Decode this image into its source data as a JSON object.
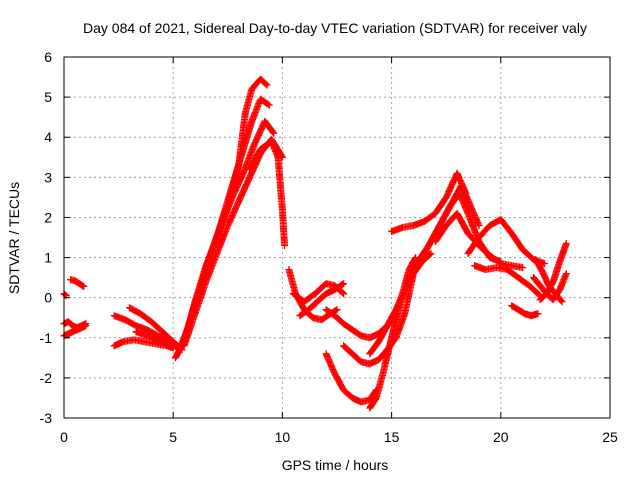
{
  "chart_data": {
    "type": "scatter",
    "title": "Day 084 of 2021, Sidereal Day-to-day VTEC variation (SDTVAR) for receiver valy",
    "xlabel": "GPS time / hours",
    "ylabel": "SDTVAR / TECUs",
    "xlim": [
      0,
      25
    ],
    "ylim": [
      -3,
      6
    ],
    "xticks": [
      0,
      5,
      10,
      15,
      20,
      25
    ],
    "yticks": [
      -3,
      -2,
      -1,
      0,
      1,
      2,
      3,
      4,
      5,
      6
    ],
    "grid": true,
    "marker": "+",
    "color": "#ff0000",
    "series": [
      {
        "name": "arc-1",
        "x": [
          0.0,
          0.1
        ],
        "y": [
          0.1,
          0.05
        ]
      },
      {
        "name": "arc-2",
        "x": [
          0.0,
          0.2,
          0.4,
          0.6,
          0.8,
          1.0
        ],
        "y": [
          -0.65,
          -0.6,
          -0.7,
          -0.75,
          -0.7,
          -0.65
        ]
      },
      {
        "name": "arc-3",
        "x": [
          0.0,
          0.2,
          0.4,
          0.6,
          0.8,
          1.0
        ],
        "y": [
          -0.95,
          -0.9,
          -0.85,
          -0.8,
          -0.75,
          -0.7
        ]
      },
      {
        "name": "arc-4",
        "x": [
          0.3,
          0.5,
          0.7,
          0.9
        ],
        "y": [
          0.45,
          0.42,
          0.35,
          0.28
        ]
      },
      {
        "name": "arc-5",
        "x": [
          2.3,
          2.7,
          3.2,
          3.7,
          4.2,
          4.7,
          5.0
        ],
        "y": [
          -1.2,
          -1.1,
          -1.05,
          -1.1,
          -1.15,
          -1.2,
          -1.25
        ]
      },
      {
        "name": "arc-6",
        "x": [
          2.3,
          2.8,
          3.3,
          3.8,
          4.3,
          4.8,
          5.2
        ],
        "y": [
          -0.45,
          -0.55,
          -0.7,
          -0.8,
          -0.95,
          -1.1,
          -1.25
        ]
      },
      {
        "name": "arc-7",
        "x": [
          3.0,
          3.5,
          4.0,
          4.5,
          5.0,
          5.4
        ],
        "y": [
          -0.25,
          -0.4,
          -0.6,
          -0.85,
          -1.1,
          -1.3
        ]
      },
      {
        "name": "arc-8",
        "x": [
          3.3,
          3.8,
          4.3,
          4.8,
          5.3
        ],
        "y": [
          -0.85,
          -0.95,
          -1.05,
          -1.15,
          -1.25
        ]
      },
      {
        "name": "arc-9",
        "x": [
          5.1,
          5.5,
          6.0,
          6.5,
          7.0,
          7.5,
          8.0,
          8.3,
          8.6,
          9.0,
          9.3
        ],
        "y": [
          -1.5,
          -1.1,
          -0.1,
          0.8,
          1.5,
          2.3,
          3.3,
          4.6,
          5.2,
          5.45,
          5.3
        ]
      },
      {
        "name": "arc-10",
        "x": [
          5.2,
          5.6,
          6.1,
          6.6,
          7.1,
          7.6,
          8.1,
          8.6,
          9.0,
          9.4
        ],
        "y": [
          -1.4,
          -0.9,
          0.0,
          0.9,
          1.7,
          2.6,
          3.5,
          4.4,
          4.95,
          4.8
        ]
      },
      {
        "name": "arc-11",
        "x": [
          5.3,
          5.7,
          6.2,
          6.7,
          7.2,
          7.7,
          8.2,
          8.7,
          9.2,
          9.6
        ],
        "y": [
          -1.3,
          -0.7,
          0.2,
          1.0,
          1.8,
          2.5,
          3.1,
          3.8,
          4.4,
          4.1
        ]
      },
      {
        "name": "arc-12",
        "x": [
          5.5,
          6.0,
          6.5,
          7.0,
          7.5,
          8.0,
          8.5,
          9.0,
          9.5,
          10.0
        ],
        "y": [
          -1.2,
          -0.4,
          0.4,
          1.1,
          1.8,
          2.4,
          3.0,
          3.6,
          3.95,
          3.5
        ]
      },
      {
        "name": "arc-13",
        "x": [
          8.5,
          9.0,
          9.5,
          9.8,
          10.0,
          10.1
        ],
        "y": [
          3.2,
          3.7,
          3.9,
          3.5,
          2.2,
          1.3
        ]
      },
      {
        "name": "arc-14",
        "x": [
          10.3,
          10.6,
          11.0,
          11.4,
          11.8,
          12.2,
          12.5
        ],
        "y": [
          0.7,
          0.1,
          -0.3,
          -0.5,
          -0.55,
          -0.4,
          -0.3
        ]
      },
      {
        "name": "arc-15",
        "x": [
          10.5,
          11.0,
          11.5,
          12.0,
          12.4,
          12.8
        ],
        "y": [
          0.1,
          -0.1,
          0.1,
          0.35,
          0.3,
          0.1
        ]
      },
      {
        "name": "arc-16",
        "x": [
          10.8,
          11.2,
          11.6,
          12.0,
          12.4,
          12.8
        ],
        "y": [
          -0.45,
          -0.3,
          -0.1,
          0.1,
          0.2,
          0.35
        ]
      },
      {
        "name": "arc-17",
        "x": [
          12.0,
          12.4,
          12.8,
          13.2,
          13.6,
          14.0,
          14.4,
          14.8,
          15.2
        ],
        "y": [
          -0.3,
          -0.45,
          -0.65,
          -0.8,
          -0.95,
          -1.0,
          -0.9,
          -0.7,
          -0.4
        ]
      },
      {
        "name": "arc-18",
        "x": [
          12.0,
          12.4,
          12.8,
          13.2,
          13.6,
          14.0,
          14.3
        ],
        "y": [
          -1.4,
          -1.9,
          -2.3,
          -2.5,
          -2.6,
          -2.55,
          -2.3
        ]
      },
      {
        "name": "arc-19",
        "x": [
          12.8,
          13.2,
          13.6,
          14.0,
          14.4,
          14.8,
          15.2,
          15.6,
          16.0
        ],
        "y": [
          -1.2,
          -1.4,
          -1.6,
          -1.65,
          -1.55,
          -1.3,
          -1.0,
          -0.4,
          0.6
        ]
      },
      {
        "name": "arc-20",
        "x": [
          14.0,
          14.3,
          14.6,
          15.0,
          15.4,
          15.8,
          16.1
        ],
        "y": [
          -2.75,
          -2.5,
          -1.9,
          -1.0,
          -0.1,
          0.7,
          1.0
        ]
      },
      {
        "name": "arc-21",
        "x": [
          14.0,
          14.4,
          14.8,
          15.2,
          15.6,
          16.0,
          16.4,
          16.8
        ],
        "y": [
          -1.4,
          -1.1,
          -0.7,
          -0.3,
          0.2,
          0.6,
          0.9,
          1.1
        ]
      },
      {
        "name": "arc-22",
        "x": [
          15.0,
          15.5,
          16.0,
          16.5,
          17.0,
          17.5,
          18.0,
          18.4
        ],
        "y": [
          1.65,
          1.75,
          1.8,
          1.9,
          2.1,
          2.5,
          3.1,
          2.6
        ]
      },
      {
        "name": "arc-23",
        "x": [
          15.8,
          16.3,
          16.8,
          17.3,
          17.8,
          18.2,
          18.6,
          19.0
        ],
        "y": [
          0.5,
          0.9,
          1.4,
          1.9,
          2.4,
          2.8,
          2.3,
          1.8
        ]
      },
      {
        "name": "arc-24",
        "x": [
          16.2,
          16.7,
          17.2,
          17.7,
          18.1,
          18.5,
          19.0,
          19.5,
          20.0
        ],
        "y": [
          0.9,
          1.3,
          1.8,
          2.3,
          2.6,
          2.1,
          1.4,
          1.0,
          0.9
        ]
      },
      {
        "name": "arc-25",
        "x": [
          17.0,
          17.5,
          18.0,
          18.5,
          19.0,
          19.5,
          20.0,
          20.5,
          21.0
        ],
        "y": [
          1.4,
          1.8,
          2.1,
          1.6,
          1.3,
          1.05,
          0.85,
          0.8,
          0.75
        ]
      },
      {
        "name": "arc-26",
        "x": [
          18.5,
          19.0,
          19.5,
          20.0,
          20.5,
          21.0,
          21.5,
          22.0
        ],
        "y": [
          1.1,
          1.5,
          1.8,
          1.95,
          1.6,
          1.2,
          0.95,
          0.85
        ]
      },
      {
        "name": "arc-27",
        "x": [
          18.8,
          19.3,
          19.8,
          20.3,
          20.8,
          21.3,
          21.8
        ],
        "y": [
          0.8,
          0.7,
          0.75,
          0.7,
          0.5,
          0.3,
          0.05
        ]
      },
      {
        "name": "arc-28",
        "x": [
          20.5,
          20.8,
          21.1,
          21.4,
          21.7
        ],
        "y": [
          -0.2,
          -0.3,
          -0.4,
          -0.45,
          -0.4
        ]
      },
      {
        "name": "arc-29",
        "x": [
          21.5,
          21.8,
          22.1,
          22.4,
          22.7,
          23.0
        ],
        "y": [
          0.5,
          0.3,
          0.1,
          -0.05,
          0.2,
          0.6
        ]
      },
      {
        "name": "arc-30",
        "x": [
          21.8,
          22.1,
          22.4,
          22.7,
          23.0
        ],
        "y": [
          -0.05,
          0.1,
          0.4,
          0.9,
          1.35
        ]
      },
      {
        "name": "arc-31",
        "x": [
          21.6,
          21.9,
          22.2,
          22.5,
          22.8
        ],
        "y": [
          0.95,
          0.65,
          0.3,
          0.1,
          -0.1
        ]
      }
    ]
  }
}
